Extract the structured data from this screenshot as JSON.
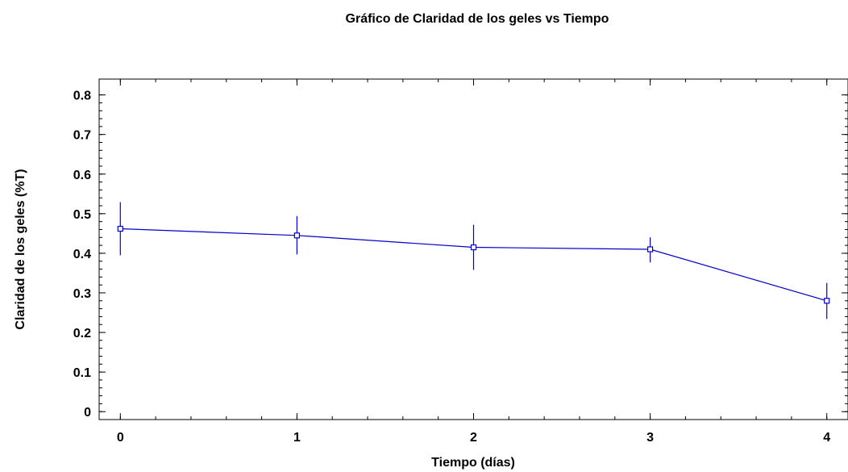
{
  "chart_data": {
    "type": "line",
    "title": "Gráfico de Claridad de los geles vs Tiempo",
    "xlabel": "Tiempo (días)",
    "ylabel": "Claridad de los geles (%T)",
    "x": [
      0,
      1,
      2,
      3,
      4
    ],
    "x_tick_labels": [
      "0",
      "1",
      "2",
      "3",
      "4"
    ],
    "y_tick_labels": [
      "0",
      "0.1",
      "0.2",
      "0.3",
      "0.4",
      "0.5",
      "0.6",
      "0.7",
      "0.8"
    ],
    "y_ticks": [
      0,
      0.1,
      0.2,
      0.3,
      0.4,
      0.5,
      0.6,
      0.7,
      0.8
    ],
    "xlim": [
      -0.12,
      4.12
    ],
    "ylim": [
      -0.02,
      0.84
    ],
    "series": [
      {
        "values": [
          0.462,
          0.445,
          0.415,
          0.41,
          0.28
        ],
        "error_low": [
          0.395,
          0.397,
          0.358,
          0.377,
          0.234
        ],
        "error_high": [
          0.529,
          0.494,
          0.472,
          0.44,
          0.325
        ],
        "color": "#0000cc",
        "marker": "square"
      }
    ],
    "grid": false,
    "legend": "none"
  }
}
